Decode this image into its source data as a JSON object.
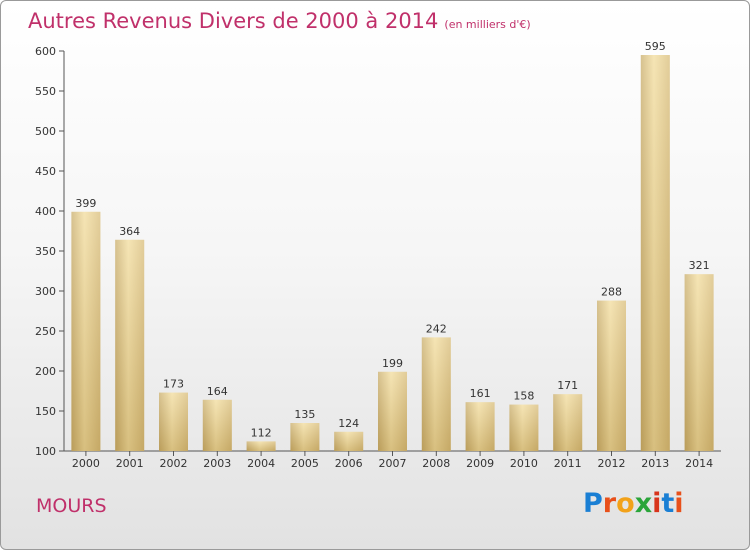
{
  "header": {
    "title": "Autres Revenus Divers de 2000 à 2014",
    "subtitle": "(en milliers d'€)"
  },
  "footer": {
    "city": "MOURS",
    "logo": "Proxiti",
    "logo_colors": [
      "#1a7fd4",
      "#e8501a",
      "#f2a21a",
      "#2aa53a",
      "#d8341c",
      "#1a7fd4",
      "#e8501a"
    ]
  },
  "chart_data": {
    "type": "bar",
    "categories": [
      "2000",
      "2001",
      "2002",
      "2003",
      "2004",
      "2005",
      "2006",
      "2007",
      "2008",
      "2009",
      "2010",
      "2011",
      "2012",
      "2013",
      "2014"
    ],
    "values": [
      399,
      364,
      173,
      164,
      112,
      135,
      124,
      199,
      242,
      161,
      158,
      171,
      288,
      595,
      321
    ],
    "title": "Autres Revenus Divers de 2000 à 2014",
    "subtitle": "(en milliers d'€)",
    "ylim": [
      100,
      600
    ],
    "yticks": [
      100,
      150,
      200,
      250,
      300,
      350,
      400,
      450,
      500,
      550,
      600
    ],
    "grid": false,
    "bar_color": "#e9cf8a"
  }
}
